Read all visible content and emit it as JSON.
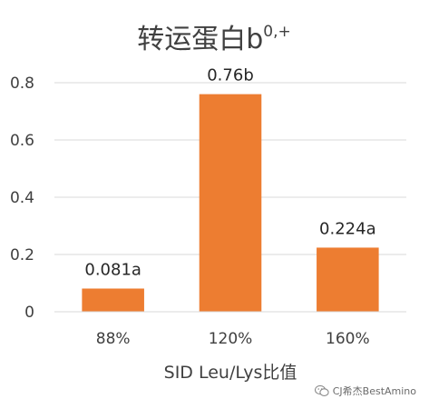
{
  "chart_data": {
    "type": "bar",
    "title": "转运蛋白b",
    "title_superscript": "0,+",
    "xlabel": "SID Leu/Lys比值",
    "ylabel": "",
    "categories": [
      "88%",
      "120%",
      "160%"
    ],
    "values": [
      0.081,
      0.76,
      0.224
    ],
    "data_labels": [
      "0.081a",
      "0.76b",
      "0.224a"
    ],
    "ylim": [
      0,
      0.8
    ],
    "yticks": [
      "0",
      "0.2",
      "0.4",
      "0.6",
      "0.8"
    ],
    "ytick_values": [
      0,
      0.2,
      0.4,
      0.6,
      0.8
    ],
    "grid": true,
    "bar_color": "#ed7d31",
    "grid_color": "#d9d9d9"
  },
  "watermark": {
    "text": "CJ希杰BestAmino",
    "icon": "wechat-icon"
  }
}
